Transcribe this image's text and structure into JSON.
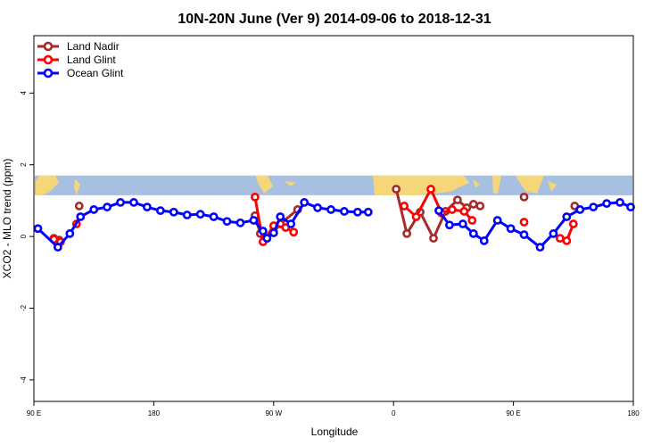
{
  "chart_data": {
    "type": "line",
    "title": "10N-20N June (Ver 9)   2014-09-06 to 2018-12-31",
    "xlabel": "Longitude",
    "ylabel": "XCO2 - MLO trend (ppm)",
    "xlim": [
      90,
      540
    ],
    "ylim": [
      -4.6,
      5.6
    ],
    "x_ticks": [
      {
        "value": 90,
        "label": "90 E"
      },
      {
        "value": 180,
        "label": "180"
      },
      {
        "value": 270,
        "label": "90 W"
      },
      {
        "value": 360,
        "label": "0"
      },
      {
        "value": 450,
        "label": "90 E"
      },
      {
        "value": 540,
        "label": "180"
      }
    ],
    "y_ticks": [
      {
        "value": -4,
        "label": "-4"
      },
      {
        "value": -2,
        "label": "-2"
      },
      {
        "value": 0,
        "label": "0"
      },
      {
        "value": 2,
        "label": "2"
      },
      {
        "value": 4,
        "label": "4"
      }
    ],
    "legend_position": "top-left",
    "map_band": {
      "y_range": [
        1.15,
        1.7
      ],
      "ocean_color": "#a7bfe0",
      "land_color": "#f5d77a"
    },
    "series": [
      {
        "name": "Land Nadir",
        "color": "#a52a2a",
        "segments": [
          [
            [
              105,
              -0.05
            ],
            [
              109,
              -0.1
            ]
          ],
          [
            [
              124,
              0.85
            ]
          ],
          [
            [
              256,
              0.58
            ],
            [
              260,
              0.08
            ],
            [
              265,
              -0.05
            ],
            [
              270,
              0.12
            ],
            [
              275,
              0.35
            ],
            [
              288,
              0.75
            ]
          ],
          [
            [
              362,
              1.32
            ],
            [
              370,
              0.08
            ],
            [
              380,
              0.68
            ],
            [
              390,
              -0.05
            ],
            [
              399,
              0.7
            ],
            [
              408,
              1.02
            ],
            [
              415,
              0.8
            ],
            [
              420,
              0.9
            ],
            [
              425,
              0.85
            ]
          ],
          [
            [
              458,
              1.1
            ]
          ],
          [
            [
              496,
              0.85
            ]
          ]
        ]
      },
      {
        "name": "Land Glint",
        "color": "#ff0000",
        "segments": [
          [
            [
              105,
              -0.08
            ],
            [
              110,
              -0.15
            ]
          ],
          [
            [
              122,
              0.35
            ]
          ],
          [
            [
              256,
              1.1
            ],
            [
              262,
              -0.15
            ],
            [
              270,
              0.3
            ],
            [
              279,
              0.25
            ],
            [
              285,
              0.12
            ]
          ],
          [
            [
              368,
              0.85
            ],
            [
              377,
              0.55
            ],
            [
              388,
              1.32
            ],
            [
              396,
              0.65
            ],
            [
              404,
              0.75
            ],
            [
              413,
              0.7
            ],
            [
              419,
              0.45
            ]
          ],
          [
            [
              458,
              0.4
            ]
          ],
          [
            [
              485,
              -0.05
            ],
            [
              490,
              -0.12
            ],
            [
              495,
              0.35
            ]
          ]
        ]
      },
      {
        "name": "Ocean Glint",
        "color": "#0000ff",
        "segments": [
          [
            [
              93,
              0.22
            ],
            [
              108,
              -0.3
            ],
            [
              117,
              0.08
            ],
            [
              125,
              0.55
            ],
            [
              135,
              0.75
            ],
            [
              145,
              0.82
            ],
            [
              155,
              0.95
            ],
            [
              165,
              0.95
            ],
            [
              175,
              0.82
            ],
            [
              185,
              0.72
            ],
            [
              195,
              0.68
            ],
            [
              205,
              0.6
            ],
            [
              215,
              0.62
            ],
            [
              225,
              0.55
            ],
            [
              235,
              0.42
            ],
            [
              245,
              0.38
            ],
            [
              255,
              0.45
            ],
            [
              262,
              0.15
            ],
            [
              265,
              -0.05
            ],
            [
              270,
              0.1
            ],
            [
              275,
              0.55
            ],
            [
              283,
              0.35
            ],
            [
              293,
              0.95
            ],
            [
              303,
              0.8
            ],
            [
              313,
              0.75
            ],
            [
              323,
              0.7
            ],
            [
              333,
              0.68
            ],
            [
              341,
              0.68
            ]
          ],
          [
            [
              394,
              0.72
            ],
            [
              402,
              0.32
            ],
            [
              412,
              0.35
            ],
            [
              420,
              0.08
            ],
            [
              428,
              -0.12
            ],
            [
              438,
              0.45
            ],
            [
              448,
              0.22
            ],
            [
              458,
              0.05
            ],
            [
              470,
              -0.3
            ],
            [
              480,
              0.08
            ],
            [
              490,
              0.55
            ],
            [
              500,
              0.75
            ],
            [
              510,
              0.82
            ],
            [
              520,
              0.92
            ],
            [
              530,
              0.95
            ],
            [
              538,
              0.82
            ]
          ]
        ]
      }
    ]
  }
}
